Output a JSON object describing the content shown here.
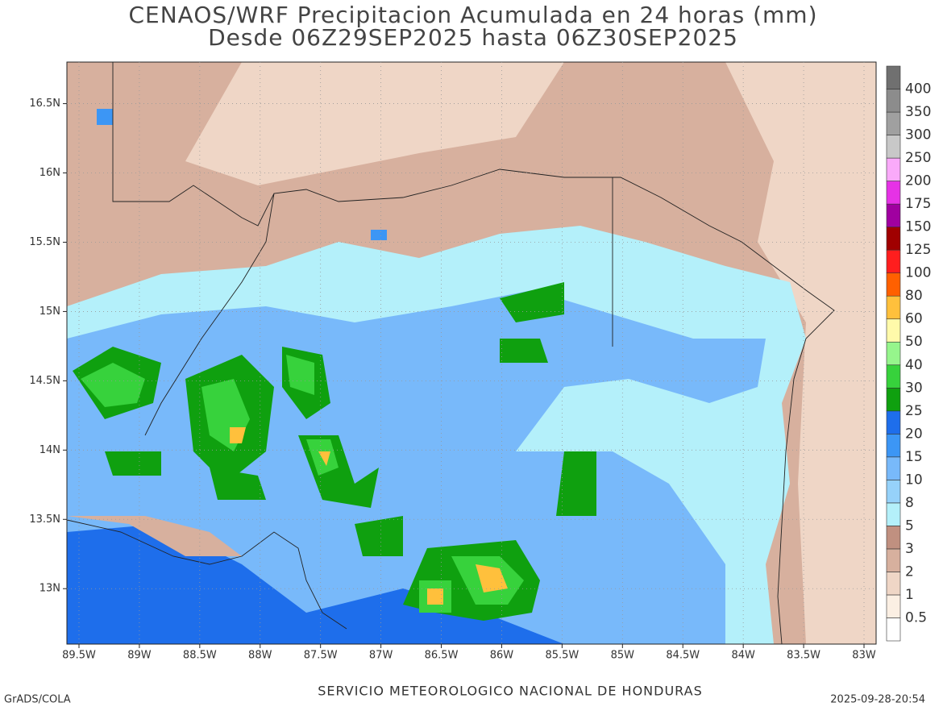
{
  "map": {
    "title": [
      "CENAOS/WRF Precipitacion Acumulada en 24 horas (mm)",
      "Desde 06Z29SEP2025 hasta 06Z30SEP2025"
    ],
    "xlim": [
      -89.6,
      -82.9
    ],
    "ylim": [
      12.6,
      16.8
    ],
    "grid": true,
    "xticks": [
      {
        "value": -89.5,
        "label": "89.5W"
      },
      {
        "value": -89,
        "label": "89W"
      },
      {
        "value": -88.5,
        "label": "88.5W"
      },
      {
        "value": -88,
        "label": "88W"
      },
      {
        "value": -87.5,
        "label": "87.5W"
      },
      {
        "value": -87,
        "label": "87W"
      },
      {
        "value": -86.5,
        "label": "86.5W"
      },
      {
        "value": -86,
        "label": "86W"
      },
      {
        "value": -85.5,
        "label": "85.5W"
      },
      {
        "value": -85,
        "label": "85W"
      },
      {
        "value": -84.5,
        "label": "84.5W"
      },
      {
        "value": -84,
        "label": "84W"
      },
      {
        "value": -83.5,
        "label": "83.5W"
      },
      {
        "value": -83,
        "label": "83W"
      }
    ],
    "yticks": [
      {
        "value": 13,
        "label": "13N"
      },
      {
        "value": 13.5,
        "label": "13.5N"
      },
      {
        "value": 14,
        "label": "14N"
      },
      {
        "value": 14.5,
        "label": "14.5N"
      },
      {
        "value": 15,
        "label": "15N"
      },
      {
        "value": 15.5,
        "label": "15.5N"
      },
      {
        "value": 16,
        "label": "16N"
      },
      {
        "value": 16.5,
        "label": "16.5N"
      }
    ],
    "colorbar": {
      "levels": [
        0.5,
        1,
        2,
        3,
        5,
        8,
        10,
        15,
        20,
        25,
        30,
        40,
        50,
        60,
        80,
        100,
        125,
        150,
        175,
        200,
        250,
        300,
        350,
        400
      ],
      "colors": [
        "#ffffff",
        "#fbefe3",
        "#efd6c6",
        "#d7b09e",
        "#c09080",
        "#b4f0fa",
        "#96d2fa",
        "#78b9fa",
        "#3c96f5",
        "#1e6eeb",
        "#0fa00f",
        "#37d23c",
        "#96f58c",
        "#fffaaa",
        "#ffc03c",
        "#ff6000",
        "#ff1e1e",
        "#a00000",
        "#a000a0",
        "#e632e6",
        "#faaafa",
        "#c8c8c8",
        "#a0a0a0",
        "#8c8c8c",
        "#707070"
      ]
    }
  },
  "footer": {
    "left": "GrADS/COLA",
    "center": "SERVICIO METEOROLOGICO NACIONAL DE HONDURAS",
    "right": "2025-09-28-20:54"
  }
}
